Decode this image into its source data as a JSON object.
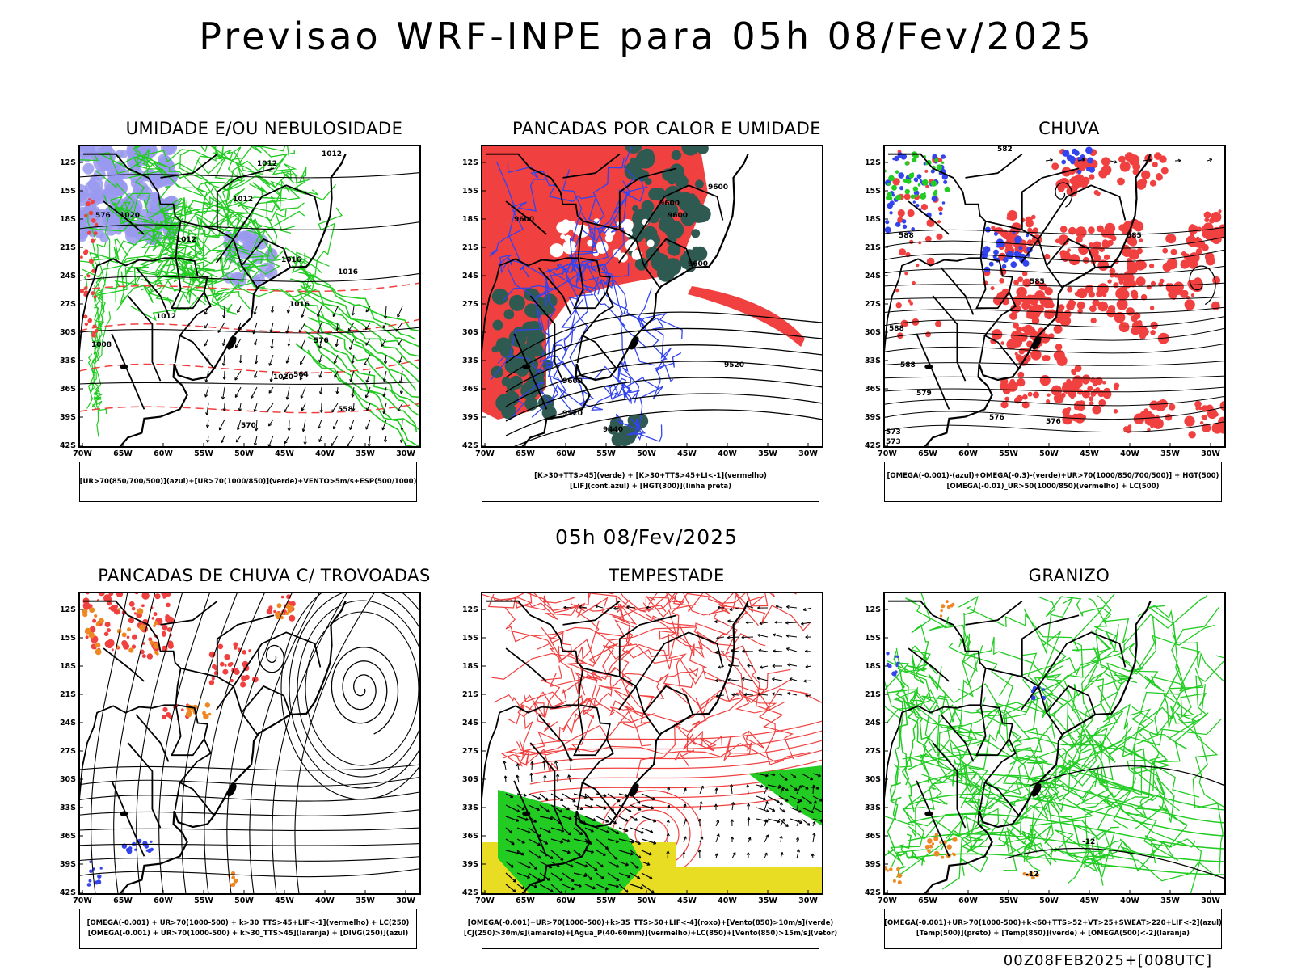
{
  "header": {
    "title": "Previsao WRF-INPE  para 05h 08/Fev/2025"
  },
  "mid_title": "05h 08/Fev/2025",
  "footer": "00Z08FEB2025+[008UTC]",
  "axes": {
    "lat_labels": [
      "12S",
      "15S",
      "18S",
      "21S",
      "24S",
      "27S",
      "30S",
      "33S",
      "36S",
      "39S",
      "42S"
    ],
    "lon_labels": [
      "70W",
      "65W",
      "60W",
      "55W",
      "50W",
      "45W",
      "40W",
      "35W",
      "30W"
    ]
  },
  "colors": {
    "red": "#f04040",
    "green": "#22cc22",
    "blue": "#3344ee",
    "lavender": "#9999ee",
    "darkteal": "#2f5a52",
    "orange": "#ee8822",
    "yellow": "#e8dd22",
    "black": "#000000"
  },
  "panels": [
    {
      "id": "umidade",
      "title": "UMIDADE E/OU NEBULOSIDADE",
      "legend": [
        "[UR>70(850/700/500)](azul)+[UR>70(1000/850)](verde)+VENTO>5m/s+ESP(500/1000)"
      ],
      "contour_labels": [
        "1012",
        "1012",
        "1012",
        "1012",
        "1016",
        "1016",
        "1016",
        "1020",
        "1020",
        "1012",
        "1008",
        "576",
        "576",
        "564",
        "558",
        "570"
      ]
    },
    {
      "id": "pancadas_calor",
      "title": "PANCADAS POR CALOR E UMIDADE",
      "legend": [
        "[K>30+TTS>45](verde) + [K>30+TTS>45+LI<-1](vermelho)",
        "[LIF](cont.azul) + [HGT(300)](linha preta)"
      ],
      "contour_labels": [
        "9600",
        "9600",
        "9600",
        "9600",
        "9600",
        "9520",
        "9600",
        "9520",
        "9440"
      ]
    },
    {
      "id": "chuva",
      "title": "CHUVA",
      "legend": [
        "[OMEGA(-0.001)-(azul)+OMEGA(-0.3)-(verde)+UR>70(1000/850/700/500)] + HGT(500)",
        "[OMEGA(-0.01)_UR>50(1000/850)(vermelho) + LC(500)"
      ],
      "contour_labels": [
        "582",
        "585",
        "588",
        "585",
        "588",
        "588",
        "579",
        "576",
        "573",
        "573",
        "576"
      ]
    },
    {
      "id": "pancadas_trovoadas",
      "title": "PANCADAS DE CHUVA C/ TROVOADAS",
      "legend": [
        "[OMEGA(-0.001) + UR>70(1000-500) + k>30_TTS>45+LIF<-1](vermelho) + LC(250)",
        "[OMEGA(-0.001) + UR>70(1000-500) + k>30_TTS>45](laranja) + [DIVG(250)](azul)"
      ]
    },
    {
      "id": "tempestade",
      "title": "TEMPESTADE",
      "legend": [
        "[OMEGA(-0.001)+UR>70(1000-500)+k>35_TTS>50+LIF<-4](roxo)+[Vento(850)>10m/s](verde)",
        "[CJ(250)>30m/s](amarelo)+[Agua_P(40-60mm)](vermelho)+LC(850)+[Vento(850)>15m/s](vetor)"
      ]
    },
    {
      "id": "granizo",
      "title": "GRANIZO",
      "legend": [
        "[OMEGA(-0.001)+UR>70(1000-500)+k<60+TTS>52+VT>25+SWEAT>220+LIF<-2](azul)",
        "[Temp(500)](preto) + [Temp(850)](verde) + [OMEGA(500)<-2](laranja)"
      ],
      "contour_labels": [
        "-12",
        "-12"
      ]
    }
  ]
}
